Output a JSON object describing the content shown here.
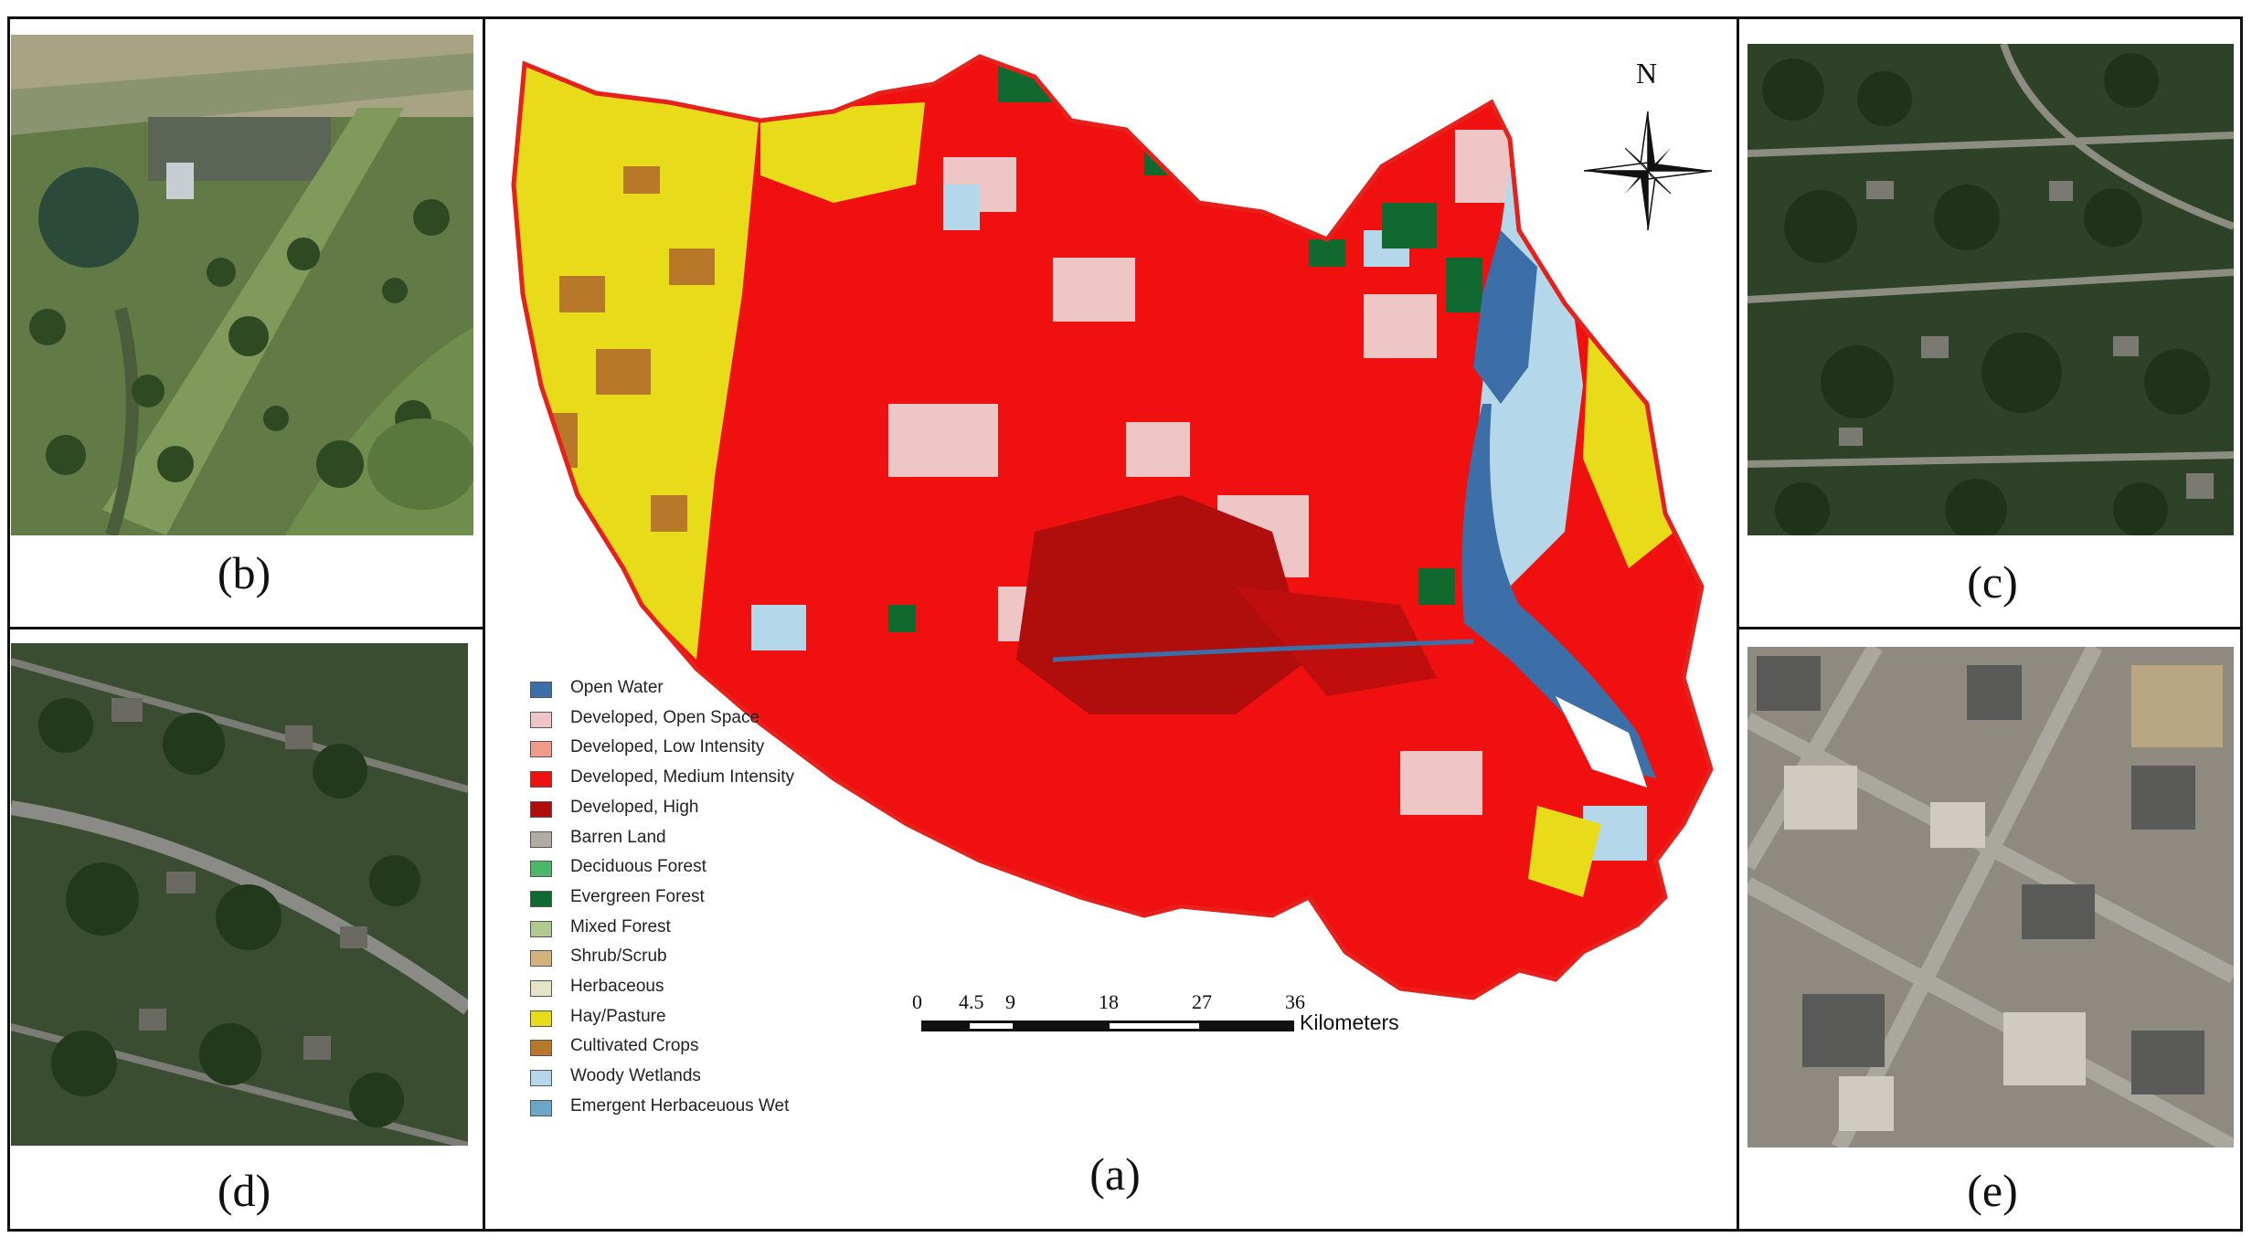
{
  "panels": {
    "b": {
      "caption": "(b)"
    },
    "c": {
      "caption": "(c)"
    },
    "d": {
      "caption": "(d)"
    },
    "e": {
      "caption": "(e)"
    },
    "a": {
      "caption": "(a)"
    }
  },
  "map": {
    "north_label": "N",
    "boundary_color": "#e8201c",
    "legend": [
      {
        "label": "Open Water",
        "color": "#3c6ea8"
      },
      {
        "label": "Developed, Open Space",
        "color": "#efc6c6"
      },
      {
        "label": "Developed, Low Intensity",
        "color": "#f09a8a"
      },
      {
        "label": "Developed, Medium Intensity",
        "color": "#f01010"
      },
      {
        "label": "Developed, High",
        "color": "#b00d0d"
      },
      {
        "label": "Barren Land",
        "color": "#b1aba2"
      },
      {
        "label": "Deciduous Forest",
        "color": "#4ab866"
      },
      {
        "label": "Evergreen Forest",
        "color": "#106a30"
      },
      {
        "label": "Mixed Forest",
        "color": "#afcb8e"
      },
      {
        "label": "Shrub/Scrub",
        "color": "#d2b47a"
      },
      {
        "label": "Herbaceous",
        "color": "#e6e3c6"
      },
      {
        "label": "Hay/Pasture",
        "color": "#e8dc1a"
      },
      {
        "label": "Cultivated Crops",
        "color": "#b8782a"
      },
      {
        "label": "Woody Wetlands",
        "color": "#b4d8ea"
      },
      {
        "label": "Emergent Herbaceuous Wet",
        "color": "#6aa6c6"
      }
    ],
    "scale_bar": {
      "ticks": [
        "0",
        "4.5",
        "9",
        "18",
        "27",
        "36"
      ],
      "tick_values": [
        0,
        4.5,
        9,
        18,
        27,
        36
      ],
      "unit": "Kilometers"
    }
  }
}
